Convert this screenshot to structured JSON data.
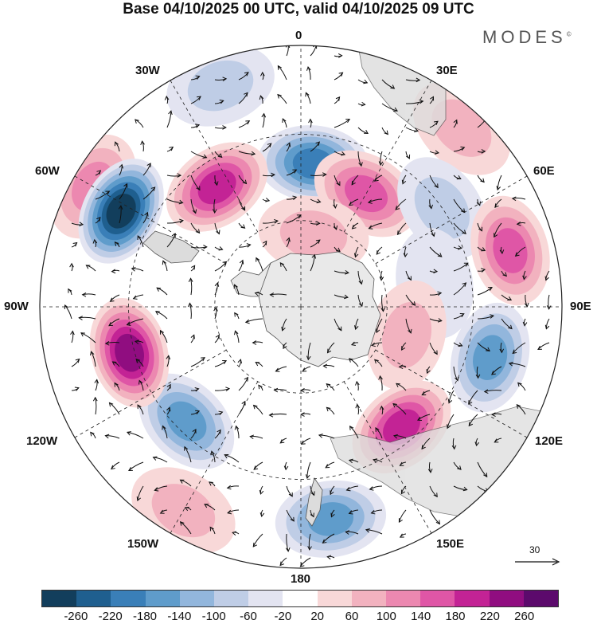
{
  "title": "Base 04/10/2025 00 UTC, valid 04/10/2025 09 UTC",
  "brand": "MODES",
  "brand_mark": "©",
  "longitude_labels": {
    "lon_0": "0",
    "lon_30e": "30E",
    "lon_60e": "60E",
    "lon_90e": "90E",
    "lon_120e": "120E",
    "lon_150e": "150E",
    "lon_180": "180",
    "lon_150w": "150W",
    "lon_120w": "120W",
    "lon_90w": "90W",
    "lon_60w": "60W",
    "lon_30w": "30W"
  },
  "reference_vector": {
    "value": "30"
  },
  "colorbar": {
    "colors": [
      "#123e5c",
      "#1f5f8f",
      "#3a7fb8",
      "#5f9ccb",
      "#92b6dc",
      "#bfcde6",
      "#e3e4f1",
      "#ffffff",
      "#f8d8d8",
      "#f2b2bf",
      "#ec88b0",
      "#df56a6",
      "#c32395",
      "#900d80",
      "#5c0a6c"
    ],
    "ticks": [
      "-260",
      "-220",
      "-180",
      "-140",
      "-100",
      "-60",
      "-20",
      "20",
      "60",
      "100",
      "140",
      "180",
      "220",
      "260"
    ]
  },
  "map_fields": {
    "anomalies": [
      {
        "lon": 5,
        "colat": 0.55,
        "value": -180
      },
      {
        "lon": -35,
        "colat": 0.56,
        "value": 200
      },
      {
        "lon": -60,
        "colat": 0.92,
        "value": 100
      },
      {
        "lon": 30,
        "colat": 0.5,
        "value": 140
      },
      {
        "lon": 42,
        "colat": 0.92,
        "value": 60
      },
      {
        "lon": 55,
        "colat": 0.66,
        "value": -80
      },
      {
        "lon": 75,
        "colat": 0.83,
        "value": 140
      },
      {
        "lon": 80,
        "colat": 0.52,
        "value": -40
      },
      {
        "lon": 105,
        "colat": 0.75,
        "value": -160
      },
      {
        "lon": 105,
        "colat": 0.42,
        "value": 80
      },
      {
        "lon": 140,
        "colat": 0.6,
        "value": 200
      },
      {
        "lon": 172,
        "colat": 0.82,
        "value": -160
      },
      {
        "lon": -135,
        "colat": 0.62,
        "value": -140
      },
      {
        "lon": -105,
        "colat": 0.68,
        "value": 220
      },
      {
        "lon": -62,
        "colat": 0.78,
        "value": -260
      },
      {
        "lon": -150,
        "colat": 0.9,
        "value": 60
      },
      {
        "lon": 10,
        "colat": 0.28,
        "value": 60
      },
      {
        "lon": -20,
        "colat": 0.9,
        "value": -60
      }
    ]
  }
}
